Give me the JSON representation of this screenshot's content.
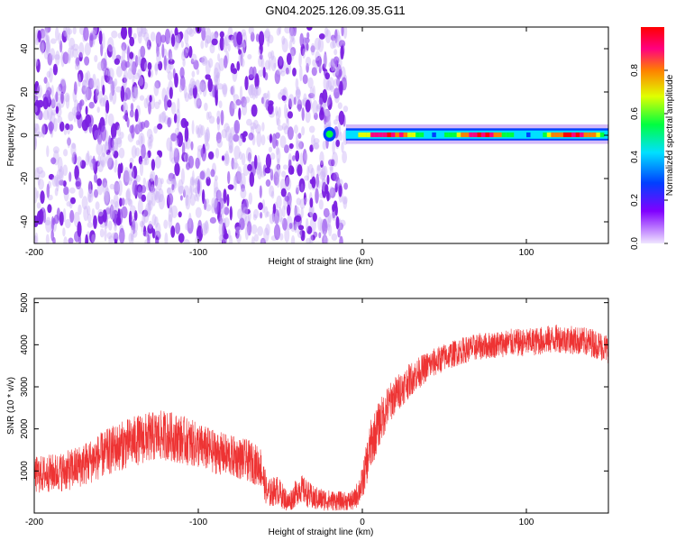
{
  "title": "GN04.2025.126.09.35.G11",
  "chart_data": [
    {
      "type": "heatmap",
      "xlabel": "Height of straight line (km)",
      "ylabel": "Frequency (Hz)",
      "xlim": [
        -200,
        150
      ],
      "ylim": [
        -50,
        50
      ],
      "xticks": [
        -200,
        -100,
        0,
        100
      ],
      "yticks": [
        -40,
        -20,
        0,
        20,
        40
      ],
      "colorbar": {
        "label": "Normalized spectral amplitude",
        "range": [
          0.0,
          1.0
        ],
        "ticks": [
          "0.0",
          "0.2",
          "0.4",
          "0.6",
          "0.8"
        ],
        "colormap": "rainbow",
        "colors": [
          "#f0e6ff",
          "#8000ff",
          "#0040ff",
          "#00e0ff",
          "#00ff40",
          "#e0ff00",
          "#ff8000",
          "#ff0080",
          "#ff0000"
        ]
      },
      "regions": [
        {
          "x": [
            -200,
            -10
          ],
          "freq": [
            -50,
            50
          ],
          "pattern": "scattered noise",
          "amplitude": [
            0.0,
            0.15
          ]
        },
        {
          "x": [
            -25,
            -15
          ],
          "freq": [
            -2,
            3
          ],
          "pattern": "onset blob",
          "amplitude": [
            0.1,
            0.45
          ]
        },
        {
          "x": [
            -10,
            150
          ],
          "freq": [
            -2,
            3
          ],
          "pattern": "carrier band",
          "amplitude": [
            0.3,
            0.95
          ]
        }
      ]
    },
    {
      "type": "line",
      "xlabel": "Height of straight line (km)",
      "ylabel": "SNR (10 * v/v)",
      "xlim": [
        -200,
        150
      ],
      "ylim": [
        0,
        5100
      ],
      "xticks": [
        -200,
        -100,
        0,
        100
      ],
      "yticks": [
        1000,
        2000,
        3000,
        4000,
        5000
      ],
      "color": "#ee3333",
      "envelope": {
        "x": [
          -200,
          -190,
          -180,
          -170,
          -160,
          -150,
          -140,
          -130,
          -120,
          -110,
          -100,
          -90,
          -80,
          -70,
          -62,
          -58,
          -52,
          -45,
          -38,
          -30,
          -20,
          -10,
          -5,
          0,
          5,
          10,
          15,
          20,
          30,
          40,
          50,
          60,
          70,
          80,
          90,
          100,
          110,
          120,
          130,
          140,
          150
        ],
        "mean": [
          900,
          950,
          1000,
          1150,
          1350,
          1550,
          1700,
          1800,
          1850,
          1750,
          1600,
          1450,
          1350,
          1250,
          1100,
          450,
          550,
          250,
          600,
          350,
          300,
          280,
          300,
          700,
          1600,
          2100,
          2500,
          2800,
          3200,
          3500,
          3700,
          3850,
          3950,
          4000,
          4050,
          4050,
          4100,
          4150,
          4100,
          4050,
          3900
        ],
        "spread": [
          450,
          450,
          480,
          520,
          550,
          580,
          600,
          600,
          600,
          580,
          550,
          520,
          500,
          500,
          480,
          350,
          350,
          250,
          350,
          300,
          250,
          220,
          250,
          400,
          600,
          550,
          500,
          450,
          400,
          350,
          330,
          320,
          320,
          320,
          330,
          330,
          340,
          340,
          340,
          350,
          350
        ]
      }
    }
  ]
}
